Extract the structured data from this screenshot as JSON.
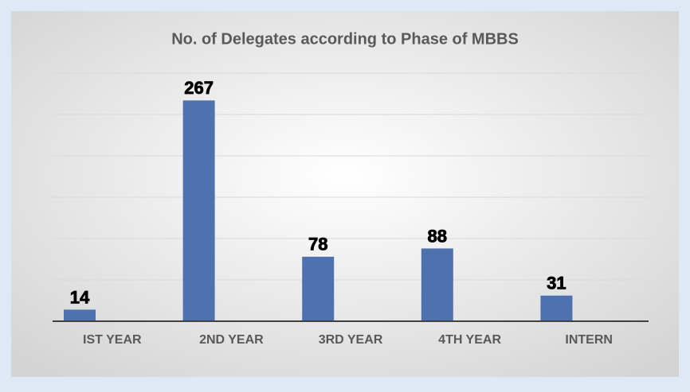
{
  "chart_data": {
    "type": "bar",
    "title": "No. of Delegates according to Phase of MBBS",
    "categories": [
      "IST YEAR",
      "2ND YEAR",
      "3RD YEAR",
      "4TH YEAR",
      "INTERN"
    ],
    "values": [
      14,
      267,
      78,
      88,
      31
    ],
    "color": "#4e72b0",
    "ylim": [
      0,
      300
    ],
    "yticks": [
      0,
      50,
      100,
      150,
      200,
      250,
      300
    ],
    "grid": true
  }
}
